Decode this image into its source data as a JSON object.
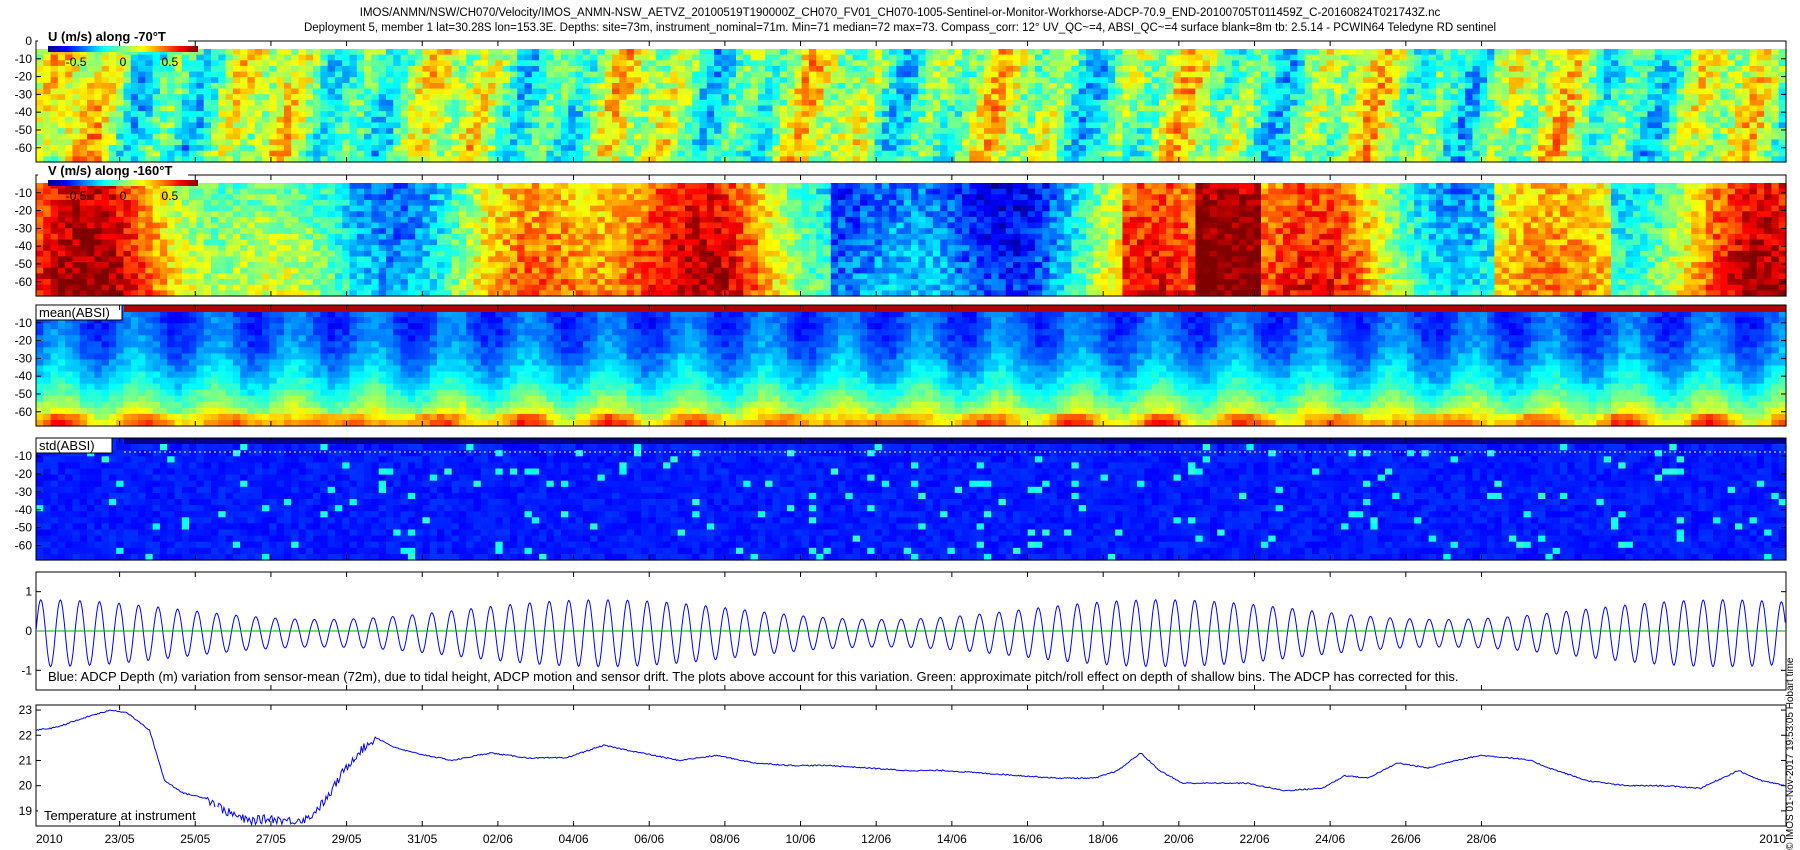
{
  "title_line1": "IMOS/ANMN/NSW/CH070/Velocity/IMOS_ANMN-NSW_AETVZ_20100519T190000Z_CH070_FV01_CH070-1005-Sentinel-or-Monitor-Workhorse-ADCP-70.9_END-20100705T011459Z_C-20160824T021743Z.nc",
  "title_line2": "Deployment 5, member 1 lat=30.28S lon=153.3E. Depths: site=73m, instrument_nominal=71m. Min=71 median=72 max=73. Compass_corr: 12° UV_QC~=4, ABSI_QC~=4 surface blank=8m tb: 2.5.14 - PCWIN64 Teledyne RD sentinel",
  "side_label": "© IMOS 01-Nov-2017 19:53:05 Hobart time",
  "colors": {
    "line": "#0000ff",
    "pitch_line": "#00aa00",
    "axis": "#000000"
  },
  "chart_data": [
    {
      "type": "heatmap",
      "label": "U (m/s) along -70°T",
      "colorbar": {
        "ticks": [
          "-0.5",
          "0",
          "0.5"
        ],
        "range": [
          -0.8,
          0.8
        ]
      },
      "y_ticks": [
        "0",
        "-10",
        "-20",
        "-30",
        "-40",
        "-50",
        "-60"
      ],
      "ylim": [
        -68,
        0
      ],
      "colormap": "jet",
      "values_range": [
        -0.8,
        0.8
      ]
    },
    {
      "type": "heatmap",
      "label": "V (m/s) along -160°T",
      "colorbar": {
        "ticks": [
          "-0.5",
          "0",
          "0.5"
        ],
        "range": [
          -0.8,
          0.8
        ]
      },
      "y_ticks": [
        "-10",
        "-20",
        "-30",
        "-40",
        "-50",
        "-60"
      ],
      "ylim": [
        -68,
        0
      ],
      "colormap": "jet",
      "values_range": [
        -0.8,
        0.8
      ]
    },
    {
      "type": "heatmap",
      "label": "mean(ABSI)",
      "y_ticks": [
        "-10",
        "-20",
        "-30",
        "-40",
        "-50",
        "-60"
      ],
      "ylim": [
        -68,
        0
      ],
      "colormap": "jet"
    },
    {
      "type": "heatmap",
      "label": "std(ABSI)",
      "y_ticks": [
        "-10",
        "-20",
        "-30",
        "-40",
        "-50",
        "-60"
      ],
      "ylim": [
        -68,
        0
      ],
      "colormap": "jet"
    },
    {
      "type": "line",
      "caption": "Blue: ADCP Depth (m) variation from sensor-mean (72m), due to tidal height, ADCP motion and sensor drift. The plots above account for this variation. Green: approximate pitch/roll effect on depth of shallow bins. The ADCP has corrected for this.",
      "y_ticks": [
        "1",
        "0",
        "-1"
      ],
      "ylim": [
        -1.5,
        1.5
      ],
      "series": [
        {
          "amplitude_m": [
            0.35,
            0.85
          ],
          "period_days": 0.517
        },
        {
          "value": 0
        }
      ]
    },
    {
      "type": "line",
      "caption": "Temperature at instrument",
      "y_ticks": [
        "23",
        "22",
        "21",
        "20",
        "19"
      ],
      "ylim": [
        18.4,
        23.2
      ],
      "x_ticks": [
        "2010",
        "23/05",
        "25/05",
        "27/05",
        "29/05",
        "31/05",
        "02/06",
        "04/06",
        "06/06",
        "08/06",
        "10/06",
        "12/06",
        "14/06",
        "16/06",
        "18/06",
        "20/06",
        "22/06",
        "24/06",
        "26/06",
        "28/06",
        "2010"
      ],
      "x_days_since_start": [
        0,
        2.21,
        4.21,
        6.21,
        8.21,
        10.21,
        12.21,
        14.21,
        16.21,
        18.21,
        20.21,
        22.21,
        24.21,
        26.21,
        28.21,
        30.21,
        32.21,
        34.21,
        36.21,
        38.21,
        40.21
      ],
      "xlim_days": [
        0,
        46.26
      ],
      "series": [
        {
          "days": [
            0,
            0.5,
            1.5,
            2.0,
            2.4,
            3.0,
            3.4,
            3.9,
            4.5,
            5.0,
            5.6,
            6.2,
            6.7,
            7.2,
            7.7,
            8.1,
            8.5,
            9.0,
            9.5,
            10.0,
            11.0,
            12.0,
            13.0,
            14.0,
            15.0,
            16.0,
            17.0,
            18.0,
            19.0,
            20.0,
            21.0,
            22.0,
            23.0,
            24.0,
            25.0,
            26.0,
            27.0,
            28.0,
            28.6,
            29.2,
            29.7,
            30.3,
            31.0,
            32.0,
            33.0,
            34.0,
            34.6,
            35.2,
            36.0,
            36.8,
            37.5,
            38.2,
            39.0,
            39.5,
            40.0,
            41.0,
            42.0,
            43.0,
            44.0,
            45.0,
            45.6,
            46.26
          ],
          "values": [
            22.2,
            22.3,
            22.8,
            23.0,
            22.9,
            22.2,
            20.2,
            19.7,
            19.5,
            19.0,
            18.6,
            18.7,
            18.6,
            18.7,
            19.5,
            20.5,
            21.3,
            21.9,
            21.5,
            21.3,
            21.0,
            21.3,
            21.1,
            21.1,
            21.6,
            21.3,
            21.0,
            21.2,
            20.9,
            20.8,
            20.8,
            20.7,
            20.6,
            20.6,
            20.5,
            20.4,
            20.3,
            20.3,
            20.6,
            21.3,
            20.6,
            20.1,
            20.1,
            20.1,
            19.8,
            19.9,
            20.4,
            20.3,
            20.9,
            20.7,
            21.0,
            21.2,
            21.1,
            21.0,
            20.7,
            20.2,
            20.0,
            20.0,
            19.9,
            20.6,
            20.2,
            20.0
          ]
        }
      ]
    }
  ]
}
